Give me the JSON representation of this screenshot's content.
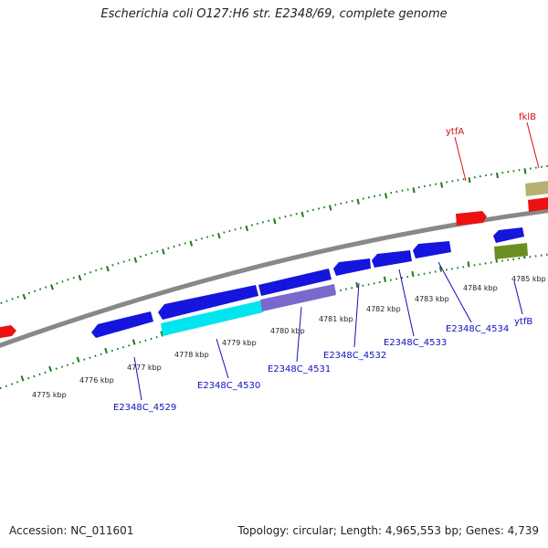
{
  "title": "Escherichia coli O127:H6 str. E2348/69, complete genome",
  "footer": {
    "accession": "Accession: NC_011601",
    "summary": "Topology: circular; Length: 4,965,553 bp; Genes: 4,739"
  },
  "colors": {
    "backbone": "#888888",
    "ticks": "#1a7a1a",
    "gene_label_forward": "#d01010",
    "gene_label_reverse": "#1010c0"
  },
  "scale_labels": [
    "4775 kbp",
    "4776 kbp",
    "4777 kbp",
    "4778 kbp",
    "4779 kbp",
    "4780 kbp",
    "4781 kbp",
    "4782 kbp",
    "4783 kbp",
    "4784 kbp",
    "4785 kbp"
  ],
  "gene_labels": [
    {
      "text": "ytfA",
      "strand": "forward"
    },
    {
      "text": "fklB",
      "strand": "forward"
    },
    {
      "text": "E2348C_4529",
      "strand": "reverse"
    },
    {
      "text": "E2348C_4530",
      "strand": "reverse"
    },
    {
      "text": "E2348C_4531",
      "strand": "reverse"
    },
    {
      "text": "E2348C_4532",
      "strand": "reverse"
    },
    {
      "text": "E2348C_4533",
      "strand": "reverse"
    },
    {
      "text": "E2348C_4534",
      "strand": "reverse"
    },
    {
      "text": "ytfB",
      "strand": "reverse"
    }
  ],
  "features": [
    {
      "id": "left-red",
      "color": "#ee1111"
    },
    {
      "id": "ytfA",
      "color": "#ee1111"
    },
    {
      "id": "fklB-tan",
      "color": "#b8b070"
    },
    {
      "id": "fklB-red",
      "color": "#ee1111"
    },
    {
      "id": "E2348C_4529",
      "color": "#1515dd"
    },
    {
      "id": "E2348C_4530",
      "color": "#1515dd"
    },
    {
      "id": "E2348C_4531",
      "color": "#1515dd"
    },
    {
      "id": "E2348C_4532",
      "color": "#1515dd"
    },
    {
      "id": "E2348C_4533",
      "color": "#1515dd"
    },
    {
      "id": "E2348C_4534",
      "color": "#1515dd"
    },
    {
      "id": "ytfB",
      "color": "#1515dd"
    },
    {
      "id": "cyan-region",
      "color": "#00e5ee"
    },
    {
      "id": "purple-region",
      "color": "#7b68cc"
    },
    {
      "id": "olive-region",
      "color": "#6b8e23"
    }
  ]
}
